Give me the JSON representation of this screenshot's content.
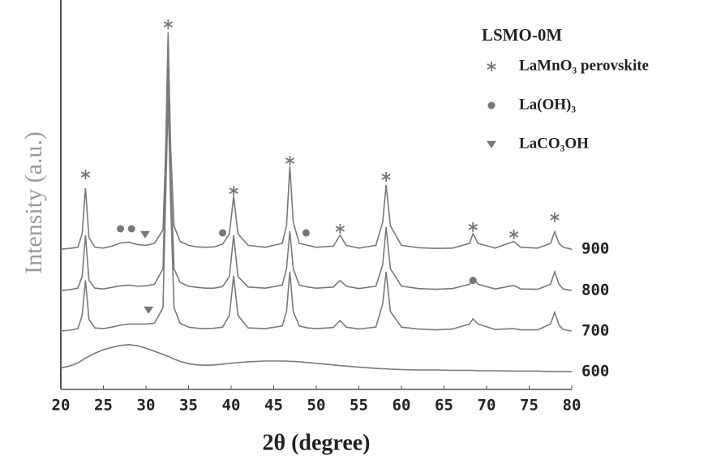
{
  "chart_data": {
    "type": "line",
    "title": "LSMO-0M",
    "x_label": "2θ (degree)",
    "y_label": "Intensity (a.u.)",
    "xlim": [
      20,
      80
    ],
    "xticks": [
      20,
      25,
      30,
      35,
      40,
      45,
      50,
      55,
      60,
      65,
      70,
      75,
      80
    ],
    "ylim": [
      0,
      100
    ],
    "legend": "upper right",
    "x": [
      20,
      21,
      22,
      22.5,
      22.9,
      23.3,
      24,
      25,
      26,
      27,
      28,
      29,
      30,
      31,
      32,
      32.3,
      32.6,
      32.9,
      33.3,
      34,
      35,
      36,
      37,
      38,
      39,
      39.8,
      40.3,
      40.8,
      42,
      44,
      46,
      46.5,
      46.9,
      47.3,
      48,
      49,
      50,
      52,
      52.8,
      53.5,
      55,
      57,
      57.8,
      58.2,
      58.7,
      60,
      62,
      64,
      66,
      68,
      68.4,
      69,
      71,
      73.2,
      74,
      76,
      77.5,
      78,
      78.5,
      79,
      80
    ],
    "series": [
      {
        "name": "900",
        "color": "#7a7a7a",
        "values": [
          36,
          36.2,
          36.5,
          40,
          51.7,
          39,
          36.5,
          36.3,
          36.8,
          37.6,
          37.8,
          37.2,
          37,
          37.5,
          41,
          60,
          91.7,
          62,
          42,
          38,
          37,
          36.6,
          36.5,
          36.6,
          37.3,
          40,
          49.6,
          40,
          37,
          36.5,
          37.5,
          42,
          57.3,
          43,
          37.5,
          37,
          36.5,
          36.8,
          39.6,
          37,
          36.3,
          37,
          43,
          52.5,
          42,
          37,
          36.4,
          36.2,
          36.3,
          37.5,
          40,
          37.5,
          36.3,
          38,
          36.5,
          36.3,
          37.5,
          40.5,
          37.5,
          36.5,
          36
        ]
      },
      {
        "name": "800",
        "color": "#7a7a7a",
        "values": [
          25.4,
          25.6,
          26,
          29,
          39.6,
          28,
          26,
          25.8,
          26.2,
          26.6,
          26.8,
          26.5,
          26.6,
          27,
          31,
          55,
          83,
          55,
          31,
          27.5,
          26.5,
          26.2,
          26,
          26,
          26.4,
          29,
          39.6,
          29,
          26.3,
          26,
          26.8,
          31,
          40.6,
          31,
          26.8,
          26.3,
          26,
          26.3,
          28,
          26.5,
          25.9,
          26.5,
          32,
          41.7,
          31,
          26.5,
          25.9,
          25.7,
          25.9,
          27,
          28.7,
          27,
          25.8,
          26.7,
          25.8,
          25.7,
          27,
          30.2,
          27,
          25.8,
          25.4
        ]
      },
      {
        "name": "700",
        "color": "#7a7a7a",
        "values": [
          15,
          15.2,
          15.6,
          19,
          28,
          18,
          15.8,
          15.6,
          16,
          16.5,
          16.8,
          16.8,
          16.8,
          17,
          21,
          48,
          75,
          48,
          21,
          17,
          16,
          15.7,
          15.6,
          15.7,
          16,
          19,
          29.2,
          19,
          15.8,
          15.6,
          16.3,
          20,
          30.2,
          20,
          16.3,
          15.8,
          15.6,
          15.9,
          17.7,
          16,
          15.5,
          16,
          22,
          30.2,
          20,
          16,
          15.5,
          15.3,
          15.5,
          16.8,
          18.1,
          16.8,
          15.4,
          15.6,
          15.3,
          15.3,
          16.8,
          19.8,
          16.5,
          15.4,
          15
        ]
      },
      {
        "name": "600",
        "color": "#7a7a7a",
        "values": [
          5.5,
          6,
          6.8,
          7.5,
          8,
          8.5,
          9.3,
          10.2,
          10.8,
          11.3,
          11.5,
          11.2,
          10.6,
          9.8,
          9,
          8.7,
          8.5,
          8.2,
          7.8,
          7.2,
          6.6,
          6.3,
          6.2,
          6.3,
          6.5,
          6.7,
          6.8,
          6.9,
          7.1,
          7.3,
          7.3,
          7.3,
          7.2,
          7.2,
          7.1,
          6.9,
          6.7,
          6.3,
          6.1,
          6,
          5.7,
          5.4,
          5.3,
          5.3,
          5.2,
          5.1,
          5,
          5,
          4.9,
          4.9,
          4.9,
          4.8,
          4.8,
          4.7,
          4.7,
          4.7,
          4.6,
          4.6,
          4.6,
          4.6,
          4.6
        ]
      }
    ],
    "legend_entries": [
      {
        "label": "LaMnO₃ perovskite",
        "marker": "star"
      },
      {
        "label": "La(OH)₃",
        "marker": "circle"
      },
      {
        "label": "LaCO₃OH",
        "marker": "triangle"
      }
    ],
    "markers": [
      {
        "x": 22.9,
        "y": 55.2,
        "marker": "star"
      },
      {
        "x": 32.6,
        "y": 93.75,
        "marker": "star"
      },
      {
        "x": 40.3,
        "y": 51,
        "marker": "star"
      },
      {
        "x": 46.9,
        "y": 58.75,
        "marker": "star"
      },
      {
        "x": 52.8,
        "y": 41.25,
        "marker": "star"
      },
      {
        "x": 58.2,
        "y": 54.6,
        "marker": "star"
      },
      {
        "x": 68.4,
        "y": 41.7,
        "marker": "star"
      },
      {
        "x": 73.2,
        "y": 39.8,
        "marker": "star"
      },
      {
        "x": 78,
        "y": 44.2,
        "marker": "star"
      },
      {
        "x": 27,
        "y": 41.25,
        "marker": "circle"
      },
      {
        "x": 28.3,
        "y": 41.25,
        "marker": "circle"
      },
      {
        "x": 39,
        "y": 40.2,
        "marker": "circle"
      },
      {
        "x": 48.8,
        "y": 40.2,
        "marker": "circle"
      },
      {
        "x": 68.4,
        "y": 28,
        "marker": "circle"
      },
      {
        "x": 29.9,
        "y": 39.8,
        "marker": "triangle"
      },
      {
        "x": 30.3,
        "y": 20.4,
        "marker": "triangle"
      }
    ]
  }
}
